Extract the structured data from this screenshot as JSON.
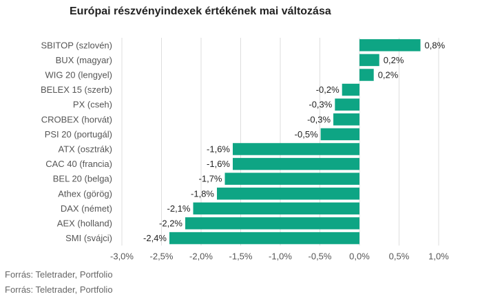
{
  "title": "Európai részvényindexek értékének mai változása",
  "source_lines": [
    "Forrás: Teletrader, Portfolio",
    "Forrás: Teletrader, Portfolio"
  ],
  "colors": {
    "bar": "#0ea584",
    "grid": "#dddddd",
    "label": "#555555",
    "value_label": "#222222"
  },
  "chart_data": {
    "type": "bar",
    "orientation": "horizontal",
    "title": "Európai részvényindexek értékének mai változása",
    "categories": [
      "SBITOP (szlovén)",
      "BUX (magyar)",
      "WIG 20 (lengyel)",
      "BELEX 15 (szerb)",
      "PX (cseh)",
      "CROBEX (horvát)",
      "PSI 20 (portugál)",
      "ATX (osztrák)",
      "CAC 40 (francia)",
      "BEL 20 (belga)",
      "Athex (görög)",
      "DAX (német)",
      "AEX (holland)",
      "SMI (svájci)"
    ],
    "values": [
      0.77,
      0.25,
      0.18,
      -0.22,
      -0.31,
      -0.33,
      -0.49,
      -1.6,
      -1.6,
      -1.7,
      -1.8,
      -2.1,
      -2.2,
      -2.4
    ],
    "value_labels": [
      "0,8%",
      "0,2%",
      "0,2%",
      "-0,2%",
      "-0,3%",
      "-0,3%",
      "-0,5%",
      "-1,6%",
      "-1,6%",
      "-1,7%",
      "-1,8%",
      "-2,1%",
      "-2,2%",
      "-2,4%"
    ],
    "xlim": [
      -3.0,
      1.0
    ],
    "xticks": [
      -3.0,
      -2.5,
      -2.0,
      -1.5,
      -1.0,
      -0.5,
      0.0,
      0.5,
      1.0
    ],
    "xtick_labels": [
      "-3,0%",
      "-2,5%",
      "-2,0%",
      "-1,5%",
      "-1,0%",
      "-0,5%",
      "0,0%",
      "0,5%",
      "1,0%"
    ],
    "grid": true,
    "legend": "none",
    "xlabel": "",
    "ylabel": ""
  }
}
